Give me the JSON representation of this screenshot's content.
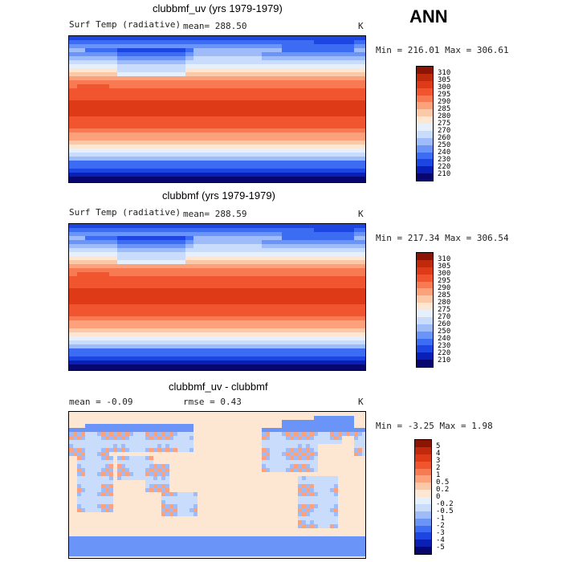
{
  "season": "ANN",
  "palettes": {
    "temperature": [
      "#08066f",
      "#0a1fb5",
      "#1d45e2",
      "#3b6cf2",
      "#6a94f7",
      "#9dbcf9",
      "#c9dcfb",
      "#e6effc",
      "#fde7d2",
      "#fcc9a8",
      "#fba17c",
      "#f77a52",
      "#f0552f",
      "#de3a17",
      "#c02a0c",
      "#8c1404"
    ],
    "difference": [
      "#08066f",
      "#0a1fb5",
      "#1d45e2",
      "#3b6cf2",
      "#6a94f7",
      "#9dbcf9",
      "#c9dcfb",
      "#e6effc",
      "#fde7d2",
      "#fcc9a8",
      "#fba17c",
      "#f77a52",
      "#f0552f",
      "#de3a17",
      "#c02a0c",
      "#8c1404"
    ]
  },
  "panels": [
    {
      "id": "test",
      "title": "clubbmf_uv (yrs 1979-1979)",
      "variable": "Surf Temp (radiative)",
      "stat": "mean= 288.50",
      "units": "K",
      "minmax": "Min = 216.01 Max = 306.61",
      "colorbar_ticks": [
        "310",
        "305",
        "300",
        "295",
        "290",
        "285",
        "280",
        "275",
        "270",
        "260",
        "250",
        "240",
        "230",
        "220",
        "210"
      ]
    },
    {
      "id": "ref",
      "title": "clubbmf (yrs 1979-1979)",
      "variable": "Surf Temp (radiative)",
      "stat": "mean= 288.59",
      "units": "K",
      "minmax": "Min = 217.34 Max = 306.54",
      "colorbar_ticks": [
        "310",
        "305",
        "300",
        "295",
        "290",
        "285",
        "280",
        "275",
        "270",
        "260",
        "250",
        "240",
        "230",
        "220",
        "210"
      ]
    },
    {
      "id": "diff",
      "title": "clubbmf_uv - clubbmf",
      "stat_mean": "mean =   -0.09",
      "stat_rmse": "rmse =    0.43",
      "units": "K",
      "minmax": "Min =  -3.25 Max =    1.98",
      "colorbar_ticks": [
        "5",
        "4",
        "3",
        "2",
        "1",
        "0.5",
        "0.2",
        "0",
        "-0.2",
        "-0.5",
        "-1",
        "-2",
        "-3",
        "-4",
        "-5"
      ]
    }
  ],
  "chart_data": [
    {
      "type": "heatmap",
      "title": "clubbmf_uv (yrs 1979-1979)",
      "variable": "Surf Temp (radiative)",
      "units": "K",
      "mean": 288.5,
      "min": 216.01,
      "max": 306.61,
      "levels": [
        210,
        220,
        230,
        240,
        250,
        260,
        270,
        275,
        280,
        285,
        290,
        295,
        300,
        305,
        310
      ],
      "description": "Global map of annual-mean radiative surface temperature; warm tropics (~300-305 K), cold poles (~215-240 K)."
    },
    {
      "type": "heatmap",
      "title": "clubbmf (yrs 1979-1979)",
      "variable": "Surf Temp (radiative)",
      "units": "K",
      "mean": 288.59,
      "min": 217.34,
      "max": 306.54,
      "levels": [
        210,
        220,
        230,
        240,
        250,
        260,
        270,
        275,
        280,
        285,
        290,
        295,
        300,
        305,
        310
      ]
    },
    {
      "type": "heatmap",
      "title": "clubbmf_uv - clubbmf",
      "units": "K",
      "mean": -0.09,
      "rmse": 0.43,
      "min": -3.25,
      "max": 1.98,
      "levels": [
        -5,
        -4,
        -3,
        -2,
        -1,
        -0.5,
        -0.2,
        0,
        0.2,
        0.5,
        1,
        2,
        3,
        4,
        5
      ]
    }
  ]
}
